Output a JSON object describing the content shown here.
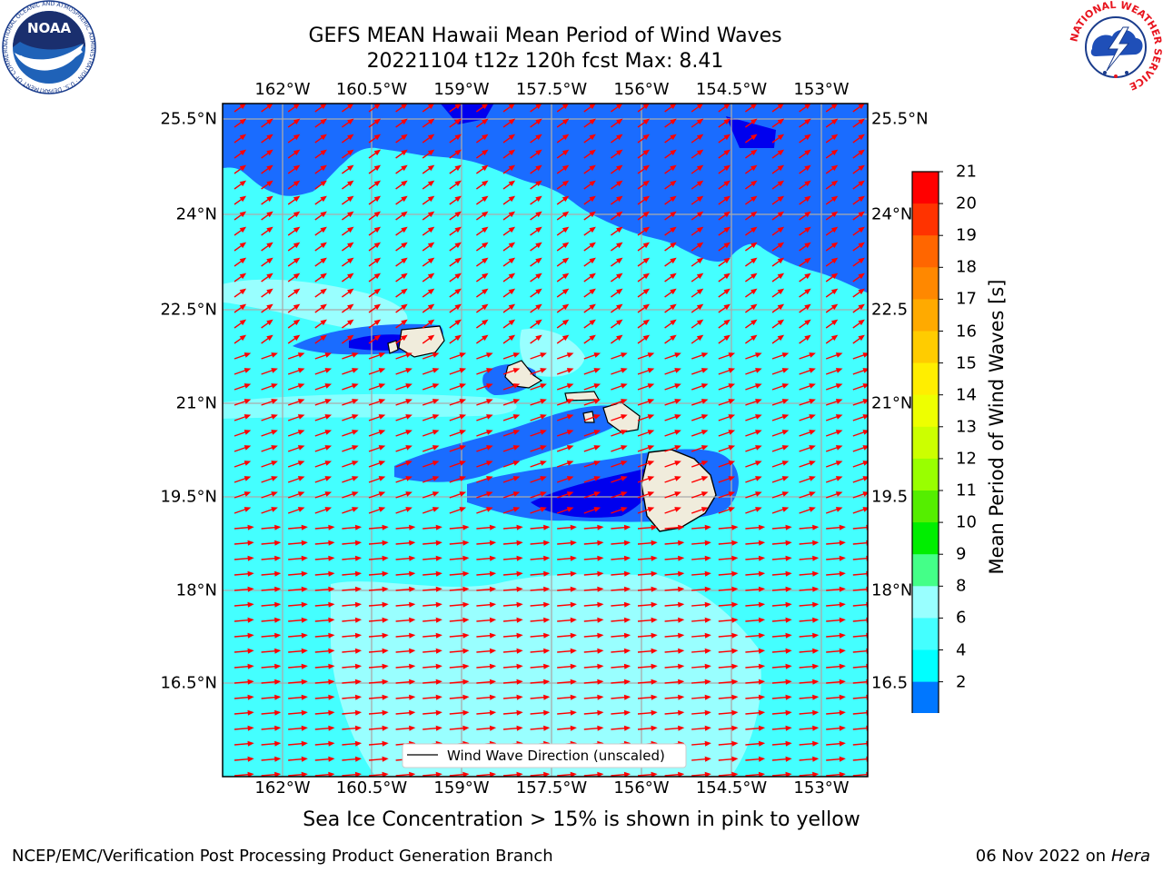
{
  "header": {
    "title_line1": "GEFS MEAN Hawaii Mean Period of Wind Waves",
    "title_line2": "20221104 t12z 120h fcst   Max: 8.41"
  },
  "logos": {
    "left": "noaa-logo",
    "left_text": "NOAA",
    "left_ring_text": "NATIONAL OCEANIC AND ATMOSPHERIC ADMINISTRATION · U.S. DEPARTMENT OF COMMERCE",
    "right": "national-weather-service-logo",
    "right_ring_text": "NATIONAL WEATHER SERVICE"
  },
  "map": {
    "lon_labels": [
      "162°W",
      "160.5°W",
      "159°W",
      "157.5°W",
      "156°W",
      "154.5°W",
      "153°W"
    ],
    "lat_labels": [
      "25.5°N",
      "24°N",
      "22.5°N",
      "21°N",
      "19.5°N",
      "18°N",
      "16.5°N"
    ],
    "lat_labels_right": [
      "25.5°N",
      "24°N",
      "22.5",
      "21°N",
      "19.5",
      "18°N",
      "16.5"
    ],
    "legend_label": "Wind Wave Direction (unscaled)",
    "arrow_color": "#ff0000",
    "land_color": "#f0ecdc"
  },
  "colorbar": {
    "title": "Mean Period of Wind Waves [s]",
    "ticks": [
      "21",
      "20",
      "19",
      "18",
      "17",
      "16",
      "15",
      "14",
      "13",
      "12",
      "11",
      "10",
      "9",
      "8",
      "6",
      "4",
      "2"
    ],
    "colors": [
      "#ff0000",
      "#ff3300",
      "#ff6600",
      "#ff8800",
      "#ffaa00",
      "#ffcc00",
      "#ffee00",
      "#eeff00",
      "#ccff00",
      "#99ff00",
      "#55ee00",
      "#00ee00",
      "#44ff88",
      "#99ffff",
      "#44ffff",
      "#00ffff",
      "#00eeff",
      "#0077ff",
      "#0000ff"
    ],
    "under_color": "#0000ff"
  },
  "notes": {
    "sea_ice": "Sea Ice Concentration > 15% is shown in pink to yellow"
  },
  "footer": {
    "left": "NCEP/EMC/Verification Post Processing Product Generation Branch",
    "date": "06 Nov 2022",
    "on_word": "on",
    "host": "Hera"
  }
}
